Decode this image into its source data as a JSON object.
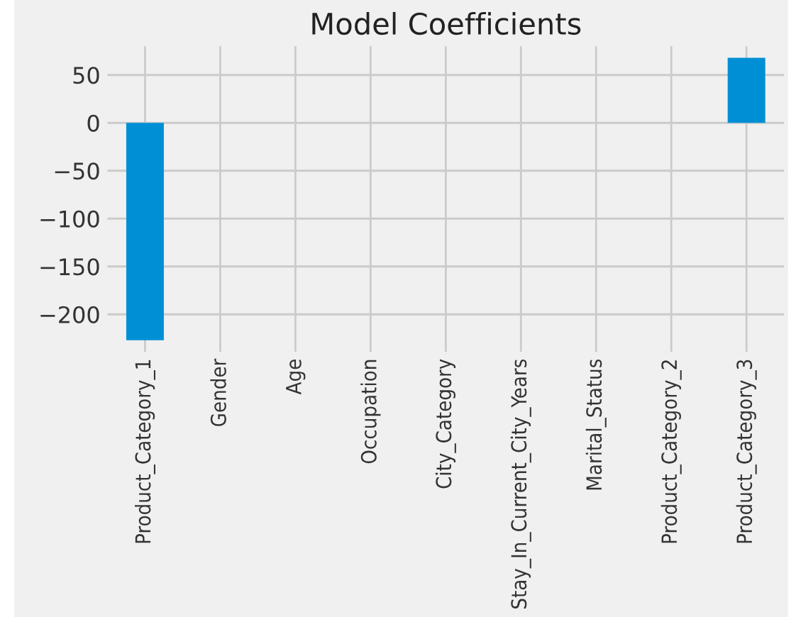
{
  "chart_data": {
    "type": "bar",
    "title": "Model Coefficients",
    "categories": [
      "Product_Category_1",
      "Gender",
      "Age",
      "Occupation",
      "City_Category",
      "Stay_In_Current_City_Years",
      "Marital_Status",
      "Product_Category_2",
      "Product_Category_3"
    ],
    "values": [
      -227,
      0,
      0,
      0,
      0,
      0,
      0,
      0,
      68
    ],
    "color": "#008fd5",
    "ylim": [
      -239,
      80
    ],
    "yticks": [
      -200,
      -150,
      -100,
      -50,
      0,
      50
    ],
    "grid": true,
    "legend": false
  }
}
